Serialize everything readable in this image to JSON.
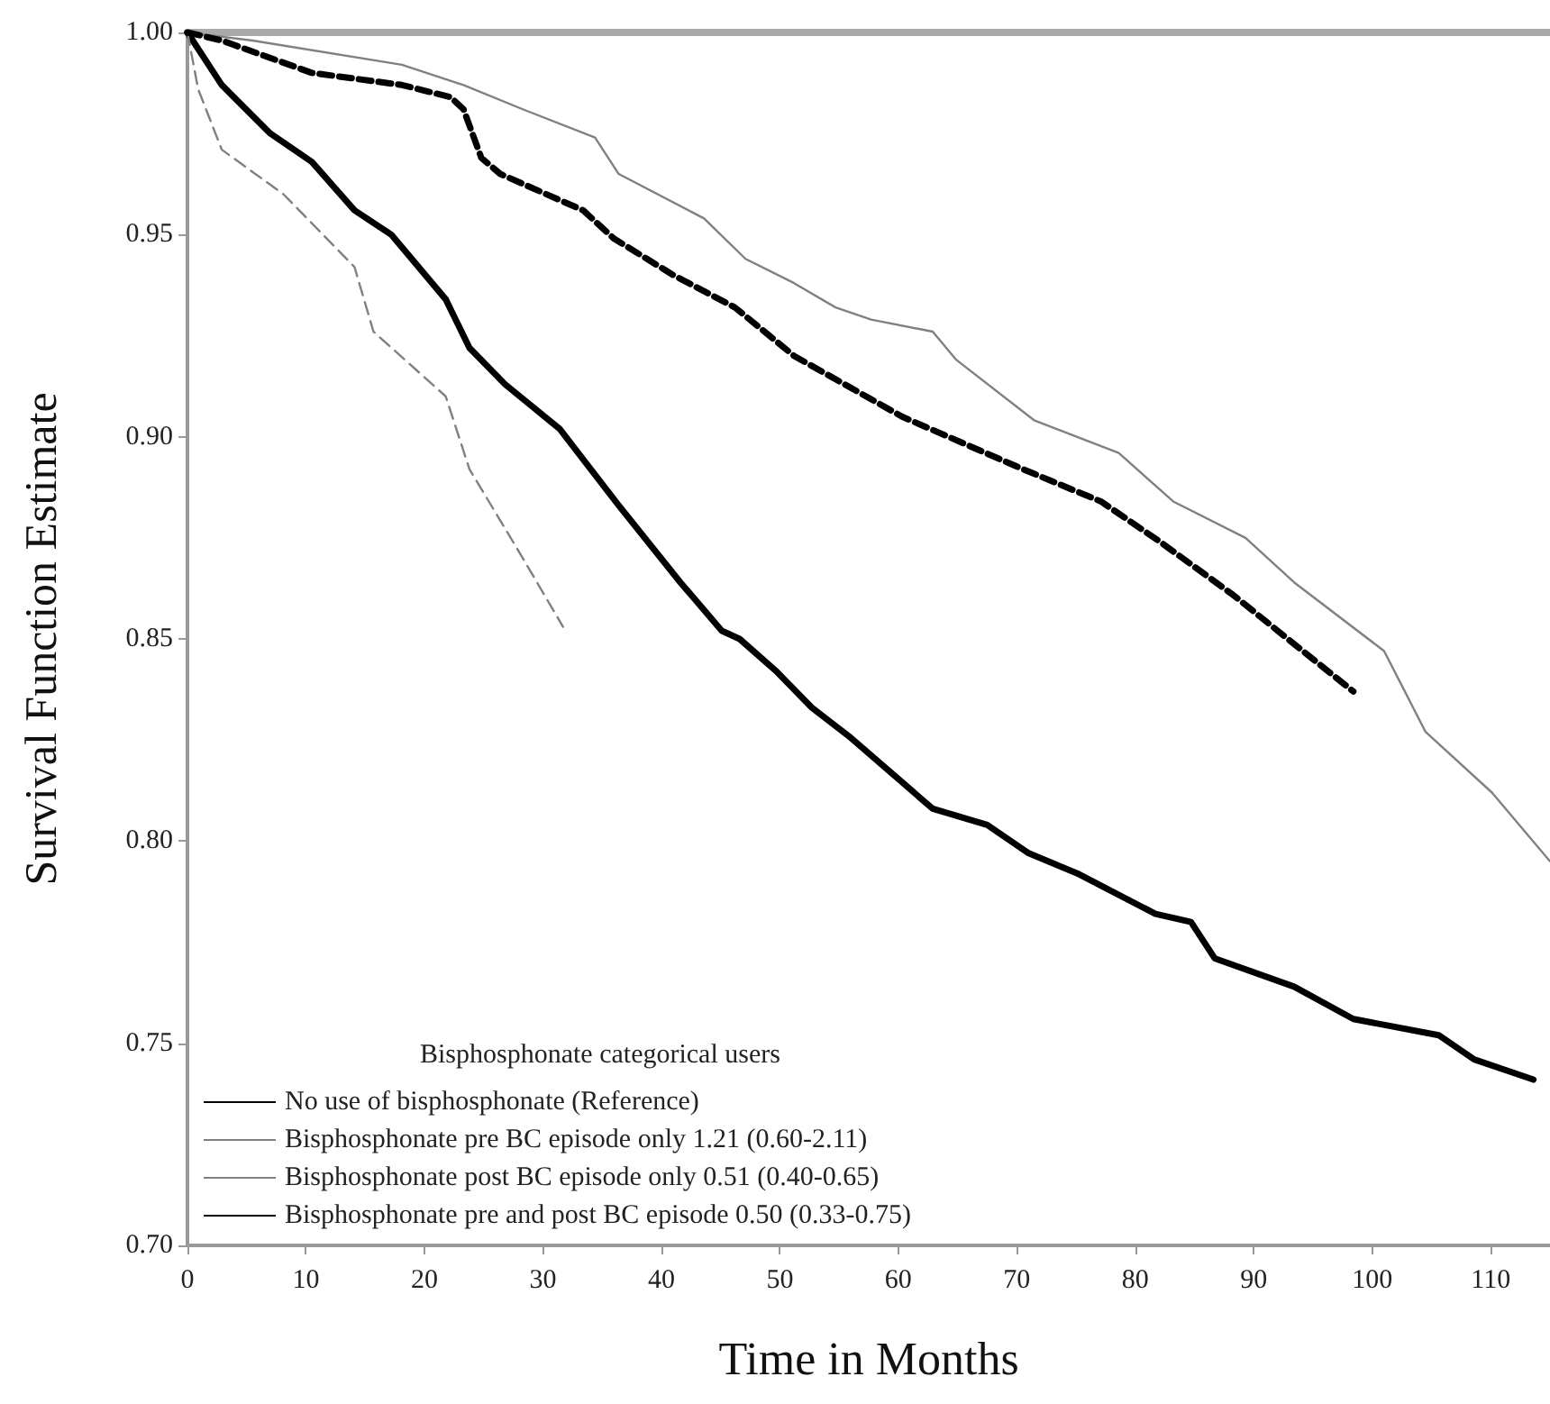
{
  "chart_data": {
    "type": "line",
    "xlabel": "Time in Months",
    "ylabel": "Survival Function Estimate",
    "legend_title": "Bisphosphonate categorical users",
    "legend": "bottom left",
    "grid": false,
    "marker": "none",
    "xlim": [
      0,
      115
    ],
    "xticks": [
      0,
      10,
      20,
      30,
      40,
      50,
      60,
      70,
      80,
      90,
      100,
      110
    ],
    "ylim": [
      0.7,
      1.0
    ],
    "yticks": [
      {
        "value": 0.7,
        "label": "0.70"
      },
      {
        "value": 0.75,
        "label": "0.75"
      },
      {
        "value": 0.8,
        "label": "0.80"
      },
      {
        "value": 0.85,
        "label": "0.85"
      },
      {
        "value": 0.9,
        "label": "0.90"
      },
      {
        "value": 0.95,
        "label": "0.95"
      },
      {
        "value": 1.0,
        "label": "1.00"
      }
    ],
    "series": [
      {
        "name": "No use of bisphosphonate (Reference)",
        "color": "#000000",
        "line_style": "solid",
        "x": [
          0,
          2.9,
          7.0,
          10.5,
          14.1,
          17.2,
          21.8,
          23.8,
          26.8,
          31.4,
          36.4,
          41.6,
          45.1,
          46.6,
          49.7,
          52.7,
          55.8,
          62.9,
          67.5,
          71,
          75.1,
          81.7,
          84.7,
          86.7,
          93.4,
          98.4,
          105.6,
          108.6,
          113.6
        ],
        "values": [
          1.0,
          0.987,
          0.975,
          0.968,
          0.956,
          0.95,
          0.934,
          0.922,
          0.913,
          0.902,
          0.883,
          0.864,
          0.852,
          0.85,
          0.842,
          0.833,
          0.826,
          0.808,
          0.804,
          0.797,
          0.792,
          0.782,
          0.78,
          0.771,
          0.764,
          0.756,
          0.752,
          0.746,
          0.741
        ]
      },
      {
        "name": "Bisphosphonate pre BC episode only 1.21 (0.60-2.11)",
        "color": "#808080",
        "line_style": "dashed",
        "x": [
          0,
          0.9,
          2.9,
          8.1,
          14.1,
          15.7,
          21.8,
          23.8,
          28.3,
          31.7
        ],
        "values": [
          1.0,
          0.986,
          0.971,
          0.96,
          0.942,
          0.926,
          0.91,
          0.892,
          0.87,
          0.853
        ]
      },
      {
        "name": "Bisphosphonate post BC episode only 0.51 (0.40-0.65)",
        "color": "#808080",
        "line_style": "solid",
        "x": [
          0,
          5.5,
          18.1,
          23.3,
          28.3,
          34.4,
          36.4,
          43.6,
          47.1,
          51.2,
          54.7,
          57.7,
          62.9,
          64.9,
          71.5,
          78.6,
          83.2,
          89.3,
          93.4,
          101,
          104.5,
          110.1,
          115
        ],
        "values": [
          1.0,
          0.998,
          0.992,
          0.987,
          0.981,
          0.974,
          0.965,
          0.954,
          0.944,
          0.938,
          0.932,
          0.929,
          0.926,
          0.919,
          0.904,
          0.896,
          0.884,
          0.875,
          0.864,
          0.847,
          0.827,
          0.812,
          0.795
        ]
      },
      {
        "name": "Bisphosphonate pre and post BC episode 0.50 (0.33-0.75)",
        "color": "#000000",
        "line_style": "dashed",
        "x": [
          0,
          2.9,
          10.5,
          18.1,
          22.2,
          23.3,
          24.8,
          26.4,
          33.4,
          36,
          41,
          46.2,
          51.2,
          60.3,
          70.5,
          77.1,
          82.1,
          88.2,
          98.4
        ],
        "values": [
          1.0,
          0.998,
          0.99,
          0.987,
          0.984,
          0.981,
          0.969,
          0.965,
          0.956,
          0.949,
          0.94,
          0.932,
          0.92,
          0.905,
          0.892,
          0.884,
          0.874,
          0.861,
          0.837
        ]
      }
    ]
  }
}
